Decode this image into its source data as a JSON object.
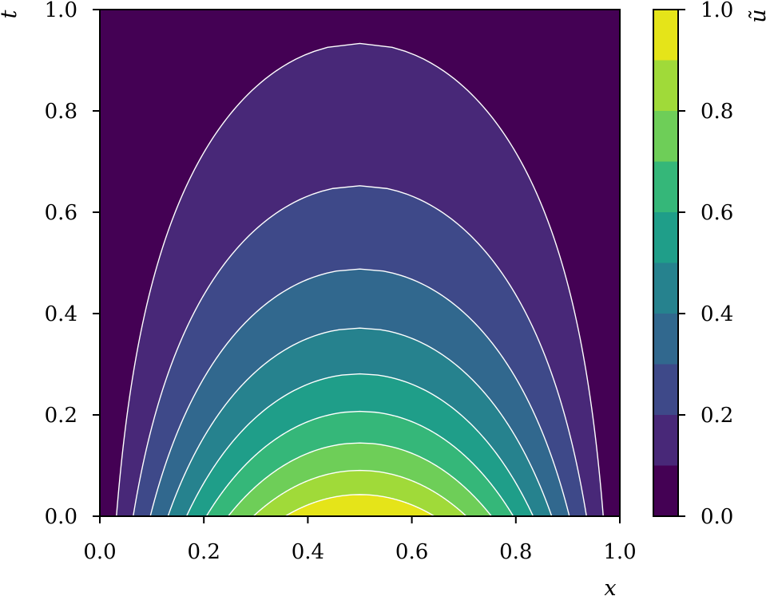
{
  "chart_data": {
    "type": "contourf",
    "title": "",
    "xlabel": "x",
    "ylabel": "t",
    "colorbar_label": "ũ",
    "xlim": [
      0.0,
      1.0
    ],
    "ylim": [
      0.0,
      1.0
    ],
    "x_ticks": [
      "0.0",
      "0.2",
      "0.4",
      "0.6",
      "0.8",
      "1.0"
    ],
    "y_ticks": [
      "0.0",
      "0.2",
      "0.4",
      "0.6",
      "0.8",
      "1.0"
    ],
    "colorbar_ticks": [
      "0.0",
      "0.2",
      "0.4",
      "0.6",
      "0.8",
      "1.0"
    ],
    "colorbar_range": [
      0.0,
      1.0
    ],
    "function": "u(x,t) = exp(-pi^2 t / 4) * sin(pi x)",
    "levels": [
      0.0,
      0.1,
      0.2,
      0.3,
      0.4,
      0.5,
      0.6,
      0.7,
      0.8,
      0.9,
      1.0
    ],
    "band_colors": [
      "#440154",
      "#482878",
      "#3e4989",
      "#31688e",
      "#26828e",
      "#1f9e89",
      "#35b779",
      "#6ece58",
      "#a0da39",
      "#e5e419"
    ],
    "contour_line_color": "#ffffff",
    "colormap": "viridis",
    "grid": false
  }
}
